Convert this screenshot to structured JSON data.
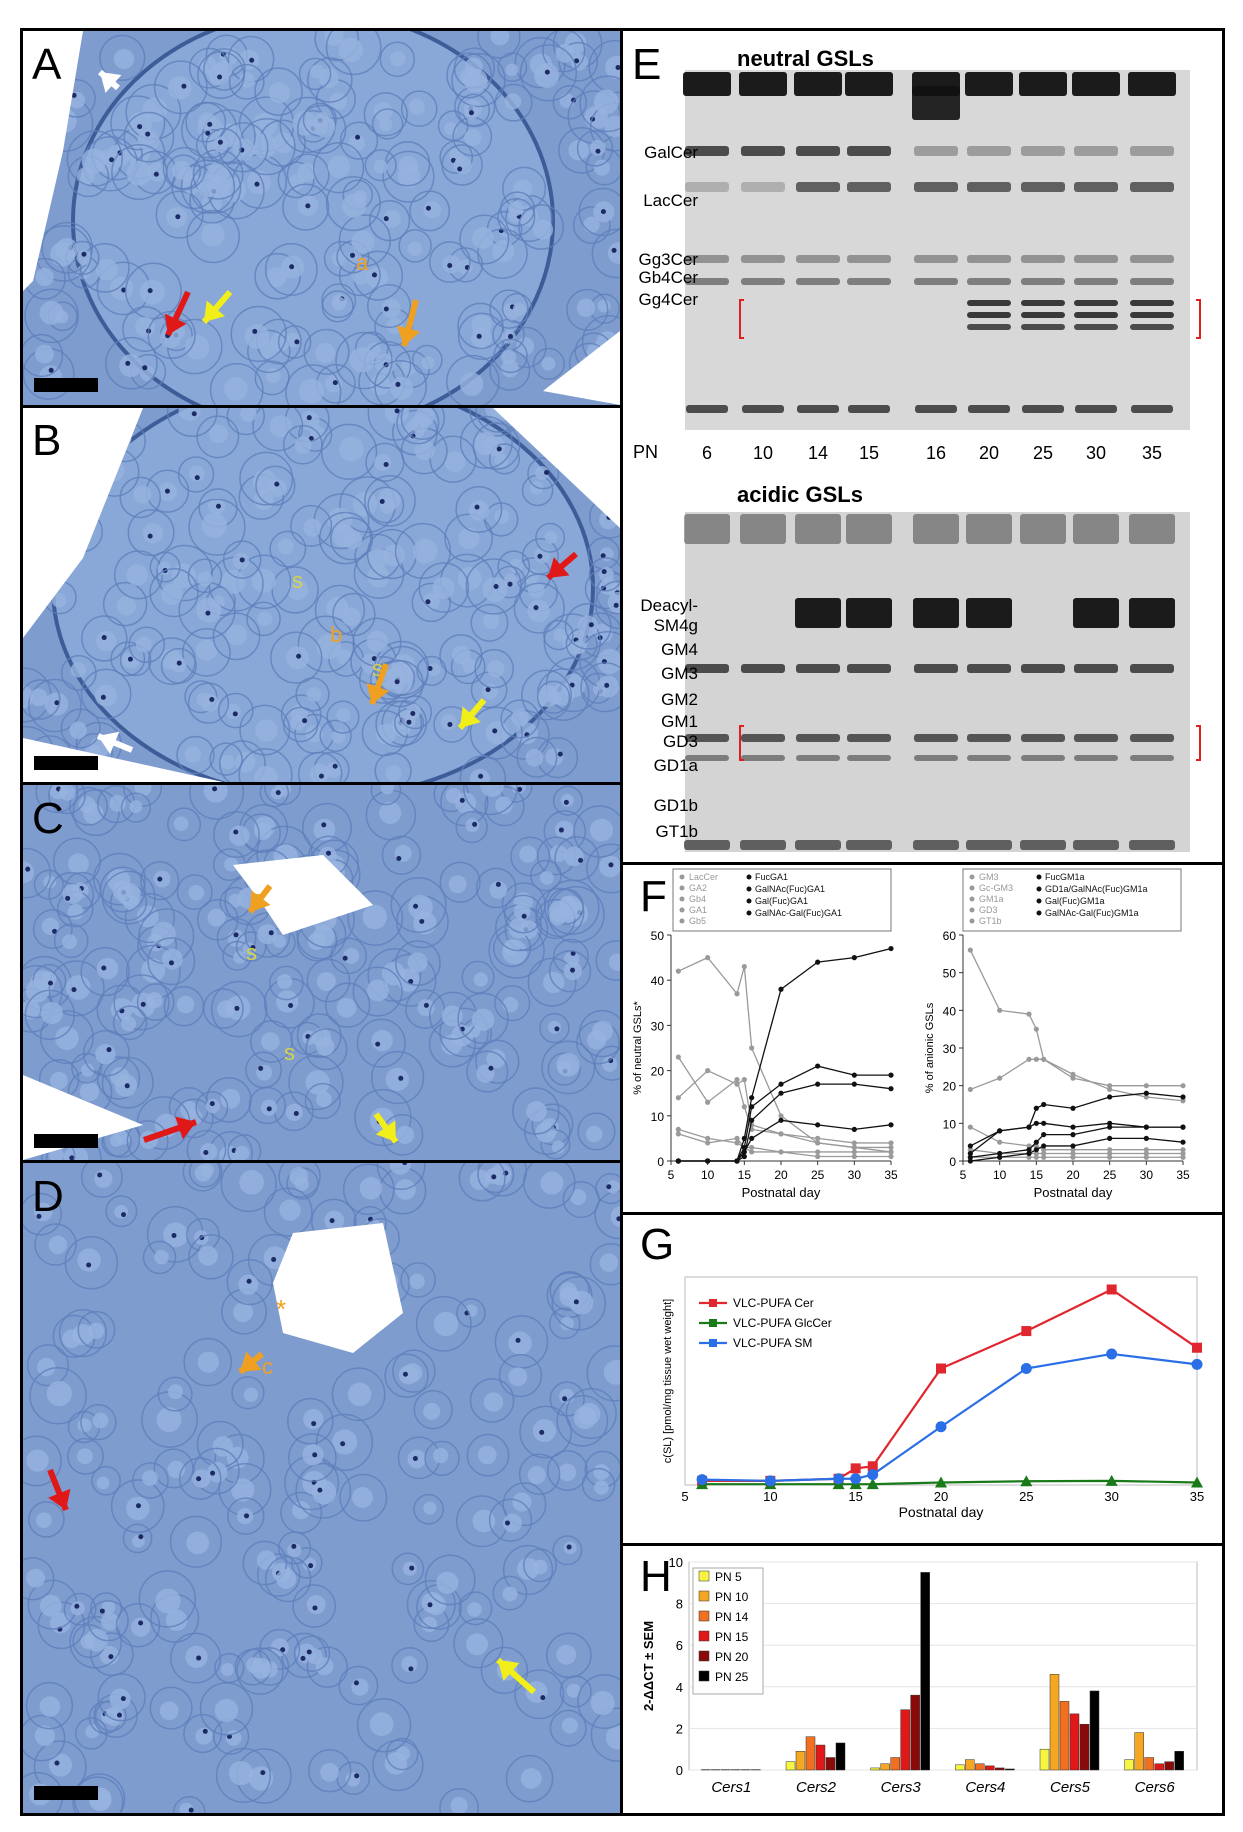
{
  "panels": {
    "A": {
      "label": "A",
      "annotations": [
        "a"
      ]
    },
    "B": {
      "label": "B",
      "annotations": [
        "s",
        "b",
        "s"
      ]
    },
    "C": {
      "label": "C",
      "annotations": [
        "c",
        "s",
        "s"
      ]
    },
    "D": {
      "label": "D",
      "annotations": [
        "*",
        "c"
      ]
    },
    "E": {
      "label": "E",
      "neutral_title": "neutral GSLs",
      "neutral_bands": [
        "GalCer",
        "LacCer",
        "Gg3Cer",
        "Gb4Cer",
        "Gg4Cer"
      ],
      "pn_label": "PN",
      "pn_values": [
        "6",
        "10",
        "14",
        "15",
        "16",
        "20",
        "25",
        "30",
        "35"
      ],
      "acidic_title": "acidic GSLs",
      "acidic_bands": [
        "Deacyl-",
        "SM4g",
        "GM4",
        "GM3",
        "GM2",
        "GM1",
        "GD3",
        "GD1a",
        "GD1b",
        "GT1b"
      ]
    },
    "F": {
      "label": "F"
    },
    "G": {
      "label": "G"
    },
    "H": {
      "label": "H"
    }
  },
  "colors": {
    "micro_bg": "#8aa8d6",
    "cell": "#7f9fd0",
    "red_arrow": "#e01818",
    "yellow_arrow": "#f2ee1a",
    "orange_arrow": "#f0a020",
    "white_arrow": "#ffffff",
    "cer": "#e0262e",
    "glccer": "#1a7a1a",
    "sm": "#2b6fe6"
  },
  "chart_data": [
    {
      "id": "F-left",
      "type": "line",
      "xlabel": "Postnatal day",
      "ylabel": "% of neutral GSLs*",
      "xlim": [
        5,
        35
      ],
      "ylim": [
        0,
        50
      ],
      "xticks": [
        5,
        10,
        15,
        20,
        25,
        30,
        35
      ],
      "yticks": [
        0,
        10,
        20,
        30,
        40,
        50
      ],
      "legend_left": [
        "LacCer",
        "GA2",
        "Gb4",
        "GA1",
        "Gb5"
      ],
      "legend_right": [
        "FucGA1",
        "GalNAc(Fuc)GA1",
        "Gal(Fuc)GA1",
        "GalNAc-Gal(Fuc)GA1"
      ],
      "x": [
        6,
        10,
        14,
        15,
        16,
        20,
        25,
        30,
        35
      ],
      "series": [
        {
          "name": "LacCer",
          "color": "gray",
          "values": [
            42,
            45,
            37,
            43,
            25,
            10,
            4,
            3,
            2
          ]
        },
        {
          "name": "GA2",
          "color": "gray",
          "values": [
            14,
            20,
            17,
            18,
            8,
            6,
            4,
            3,
            3
          ]
        },
        {
          "name": "Gb4",
          "color": "gray",
          "values": [
            23,
            13,
            18,
            12,
            7,
            6,
            5,
            4,
            4
          ]
        },
        {
          "name": "GA1",
          "color": "gray",
          "values": [
            6,
            4,
            5,
            3,
            3,
            2,
            2,
            2,
            2
          ]
        },
        {
          "name": "Gb5",
          "color": "gray",
          "values": [
            7,
            5,
            4,
            3,
            2,
            2,
            1,
            1,
            1
          ]
        },
        {
          "name": "FucGA1",
          "color": "black",
          "values": [
            0,
            0,
            0,
            5,
            14,
            38,
            44,
            45,
            47
          ]
        },
        {
          "name": "GalNAc(Fuc)GA1",
          "color": "black",
          "values": [
            0,
            0,
            0,
            3,
            12,
            17,
            21,
            19,
            19
          ]
        },
        {
          "name": "Gal(Fuc)GA1",
          "color": "black",
          "values": [
            0,
            0,
            0,
            2,
            5,
            9,
            8,
            7,
            8
          ]
        },
        {
          "name": "GalNAc-Gal(Fuc)GA1",
          "color": "black",
          "values": [
            0,
            0,
            0,
            1,
            9,
            15,
            17,
            17,
            16
          ]
        }
      ]
    },
    {
      "id": "F-right",
      "type": "line",
      "xlabel": "Postnatal day",
      "ylabel": "% of anionic GSLs",
      "xlim": [
        5,
        35
      ],
      "ylim": [
        0,
        60
      ],
      "xticks": [
        5,
        10,
        15,
        20,
        25,
        30,
        35
      ],
      "yticks": [
        0,
        10,
        20,
        30,
        40,
        50,
        60
      ],
      "legend_left": [
        "GM3",
        "Gc-GM3",
        "GM1a",
        "GD3",
        "GT1b"
      ],
      "legend_right": [
        "FucGM1a",
        "GD1a/GalNAc(Fuc)GM1a",
        "Gal(Fuc)GM1a",
        "GalNAc-Gal(Fuc)GM1a"
      ],
      "x": [
        6,
        10,
        14,
        15,
        16,
        20,
        25,
        30,
        35
      ],
      "series": [
        {
          "name": "GM3",
          "color": "gray",
          "values": [
            56,
            40,
            39,
            35,
            27,
            22,
            20,
            20,
            20
          ]
        },
        {
          "name": "Gc-GM3",
          "color": "gray",
          "values": [
            19,
            22,
            27,
            27,
            27,
            23,
            19,
            17,
            16
          ]
        },
        {
          "name": "GM1a",
          "color": "gray",
          "values": [
            9,
            5,
            4,
            4,
            3,
            3,
            3,
            3,
            3
          ]
        },
        {
          "name": "GD3",
          "color": "gray",
          "values": [
            3,
            2,
            2,
            2,
            2,
            2,
            2,
            2,
            2
          ]
        },
        {
          "name": "GT1b",
          "color": "gray",
          "values": [
            1,
            1,
            1,
            1,
            1,
            1,
            1,
            1,
            1
          ]
        },
        {
          "name": "FucGM1a",
          "color": "black",
          "values": [
            4,
            8,
            9,
            14,
            15,
            14,
            17,
            18,
            17
          ]
        },
        {
          "name": "GD1a/GalNAc(Fuc)GM1a",
          "color": "black",
          "values": [
            2,
            8,
            9,
            10,
            10,
            9,
            10,
            9,
            9
          ]
        },
        {
          "name": "Gal(Fuc)GM1a",
          "color": "black",
          "values": [
            1,
            2,
            3,
            5,
            7,
            7,
            9,
            9,
            9
          ]
        },
        {
          "name": "GalNAc-Gal(Fuc)GM1a",
          "color": "black",
          "values": [
            0,
            1,
            2,
            3,
            4,
            4,
            6,
            6,
            5
          ]
        }
      ]
    },
    {
      "id": "G",
      "type": "line",
      "xlabel": "Postnatal day",
      "ylabel": "c(SL) [pmol/mg tissue wet weight]",
      "xlim": [
        5,
        35
      ],
      "ylim": [
        0,
        50
      ],
      "xticks": [
        5,
        10,
        15,
        20,
        25,
        30,
        35
      ],
      "x": [
        6,
        10,
        14,
        15,
        16,
        20,
        25,
        30,
        35
      ],
      "series": [
        {
          "name": "VLC-PUFA Cer",
          "color": "#e0262e",
          "values": [
            1,
            1,
            1.5,
            4,
            4.5,
            28,
            37,
            47,
            33
          ]
        },
        {
          "name": "VLC-PUFA GlcCer",
          "color": "#1a7a1a",
          "values": [
            0.2,
            0.2,
            0.2,
            0.2,
            0.2,
            0.6,
            0.9,
            1,
            0.6
          ]
        },
        {
          "name": "VLC-PUFA SM",
          "color": "#2b6fe6",
          "values": [
            1.3,
            1,
            1.5,
            1.5,
            2.5,
            14,
            28,
            31.5,
            29
          ]
        }
      ]
    },
    {
      "id": "H",
      "type": "bar",
      "ylabel": "2-ΔΔCT ± SEM",
      "ylim": [
        0,
        10
      ],
      "yticks": [
        0,
        2,
        4,
        6,
        8,
        10
      ],
      "categories": [
        "Cers1",
        "Cers2",
        "Cers3",
        "Cers4",
        "Cers5",
        "Cers6"
      ],
      "series": [
        {
          "name": "PN 5",
          "color": "#f5f542",
          "values": [
            0.02,
            0.4,
            0.1,
            0.25,
            1.0,
            0.5
          ]
        },
        {
          "name": "PN 10",
          "color": "#f5a623",
          "values": [
            0.02,
            0.9,
            0.3,
            0.5,
            4.6,
            1.8
          ]
        },
        {
          "name": "PN 14",
          "color": "#f07020",
          "values": [
            0.02,
            1.6,
            0.6,
            0.3,
            3.3,
            0.6
          ]
        },
        {
          "name": "PN 15",
          "color": "#e01818",
          "values": [
            0.02,
            1.2,
            2.9,
            0.2,
            2.7,
            0.3
          ]
        },
        {
          "name": "PN 20",
          "color": "#8a0a0a",
          "values": [
            0.02,
            0.6,
            3.6,
            0.1,
            2.2,
            0.4
          ]
        },
        {
          "name": "PN 25",
          "color": "#000000",
          "values": [
            0.02,
            1.3,
            9.5,
            0.05,
            3.8,
            0.9
          ]
        }
      ]
    }
  ]
}
